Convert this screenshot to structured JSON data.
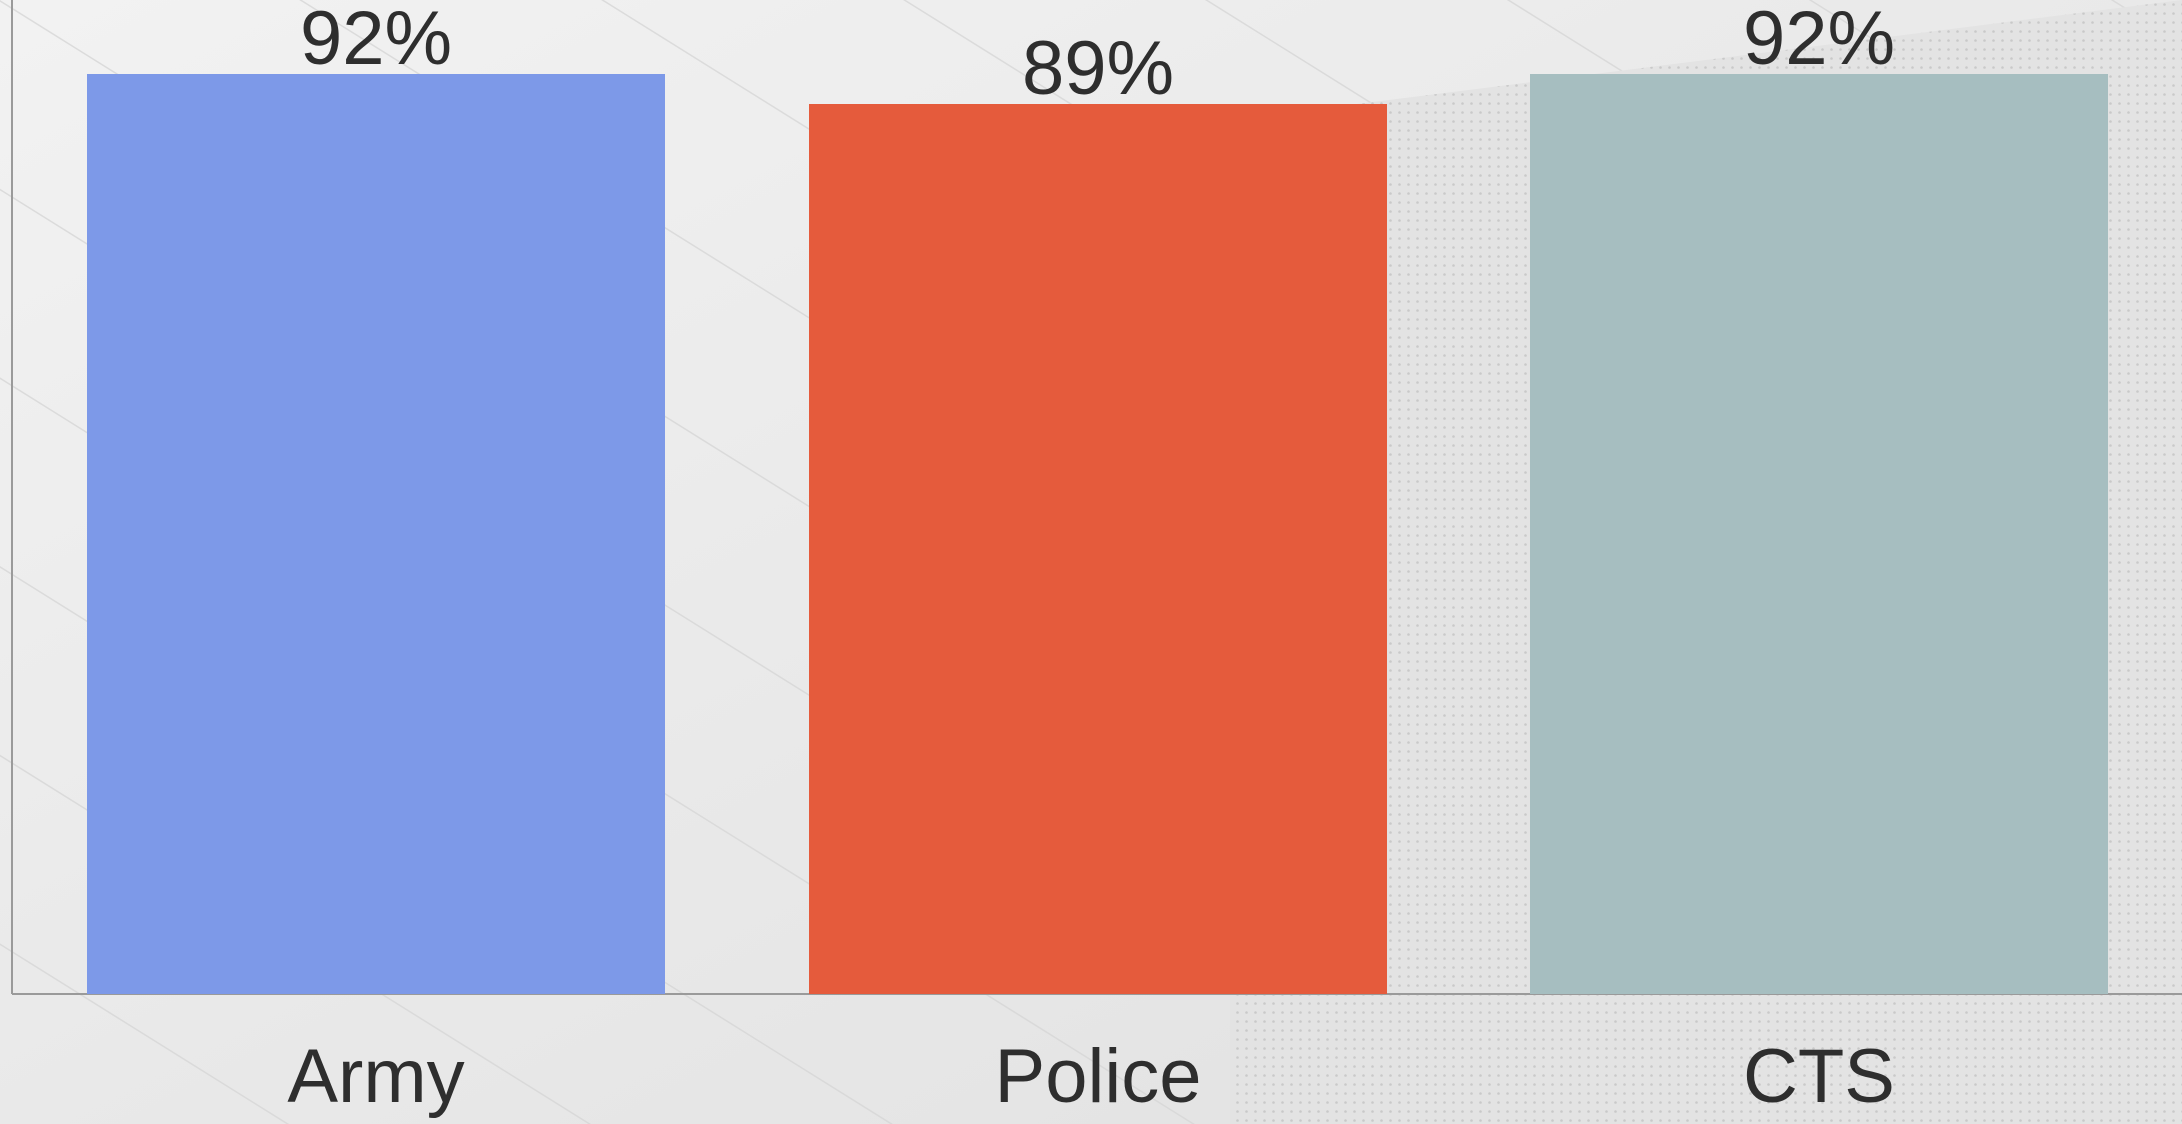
{
  "chart_data": {
    "type": "bar",
    "categories": [
      "Army",
      "Police",
      "CTS"
    ],
    "values": [
      92,
      89,
      92
    ],
    "data_labels": [
      "92%",
      "89%",
      "92%"
    ],
    "colors": [
      "#7d99e8",
      "#e55b3c",
      "#a6bec0"
    ],
    "ylim": [
      0,
      100
    ],
    "title": "",
    "xlabel": "",
    "ylabel": "",
    "grid": false,
    "legend": "none"
  }
}
